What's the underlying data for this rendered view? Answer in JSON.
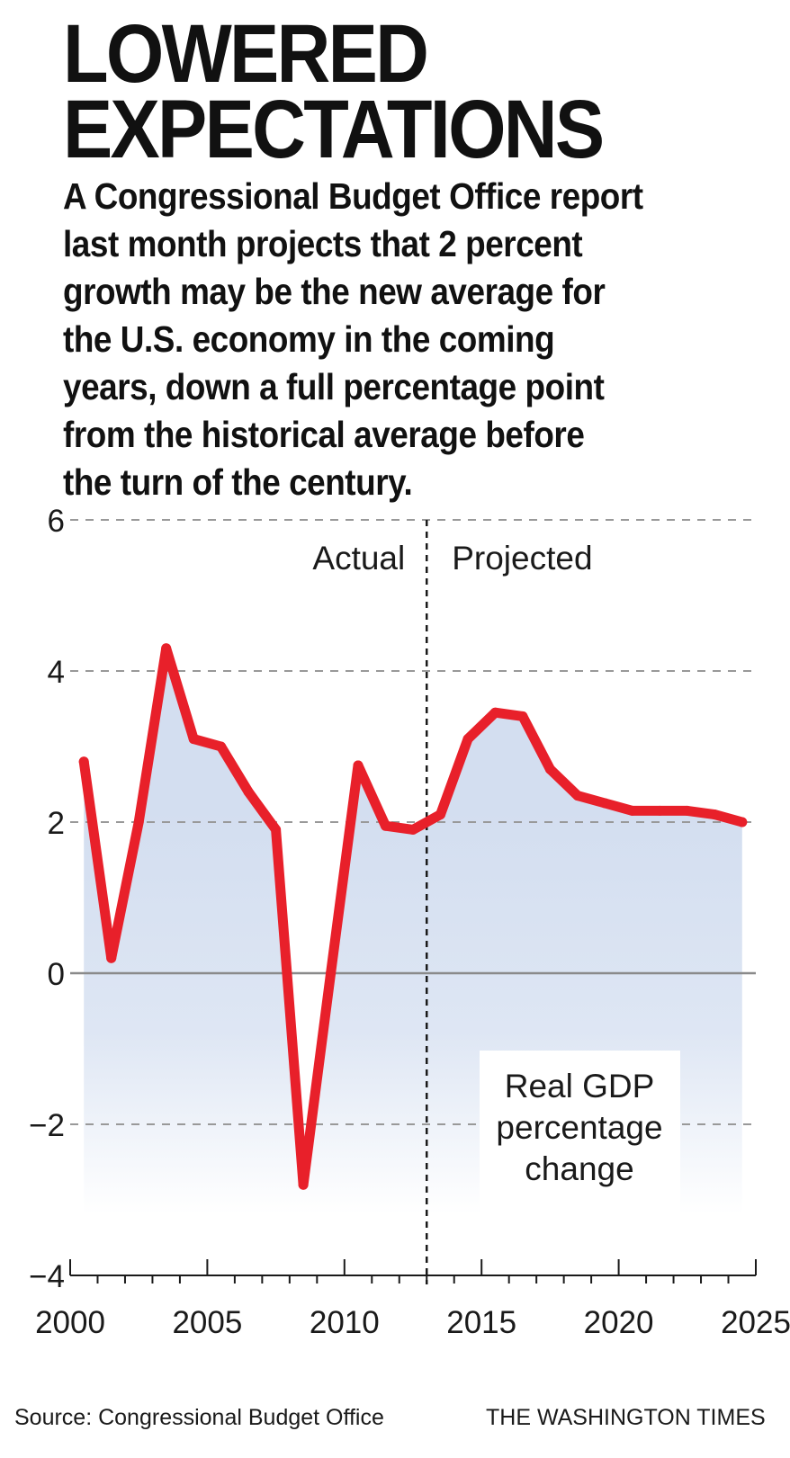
{
  "headline": [
    "LOWERED",
    "EXPECTATIONS"
  ],
  "dek": [
    "A Congressional Budget Office report",
    "last month projects that 2 percent",
    "growth may be the new average for",
    "the U.S. economy in the coming",
    "years, down a full percentage point",
    "from the historical average before",
    "the turn of the century."
  ],
  "source": "Source: Congressional Budget Office",
  "credit": "THE WASHINGTON TIMES",
  "colors": {
    "line": "#e8202a",
    "area": "#d3def0",
    "grid": "#999999",
    "text": "#1a1a1a"
  },
  "chart_data": {
    "type": "area",
    "title": "",
    "xlabel": "",
    "ylabel": "",
    "xlim": [
      2000,
      2025
    ],
    "ylim": [
      -4,
      6
    ],
    "x_ticks": [
      2000,
      2005,
      2010,
      2015,
      2020,
      2025
    ],
    "y_ticks": [
      6,
      4,
      2,
      0,
      -2,
      -4
    ],
    "y_tick_labels": [
      "6",
      "4",
      "2",
      "0",
      "−2",
      "−4"
    ],
    "grid": "dashed horizontal lines at 2, 4, 6 and -2; solid line at 0",
    "divider_x": 2013,
    "phase_labels": {
      "actual": "Actual",
      "projected": "Projected"
    },
    "annotation": [
      "Real GDP",
      "percentage",
      "change"
    ],
    "series": [
      {
        "x": [
          2000.5,
          2001.5,
          2002.5,
          2003.5,
          2004.5,
          2005.5,
          2006.5,
          2007.5,
          2008.5,
          2009.5,
          2010.5,
          2011.5,
          2012.5,
          2013.5,
          2014.5,
          2015.5,
          2016.5,
          2017.5,
          2018.5,
          2019.5,
          2020.5,
          2021.5,
          2022.5,
          2023.5,
          2024.5
        ],
        "values": [
          2.8,
          0.2,
          2.0,
          4.3,
          3.1,
          3.0,
          2.4,
          1.9,
          -2.8,
          0.0,
          2.75,
          1.95,
          1.9,
          2.1,
          3.1,
          3.45,
          3.4,
          2.7,
          2.35,
          2.25,
          2.15,
          2.15,
          2.15,
          2.1,
          2.0
        ]
      }
    ]
  }
}
